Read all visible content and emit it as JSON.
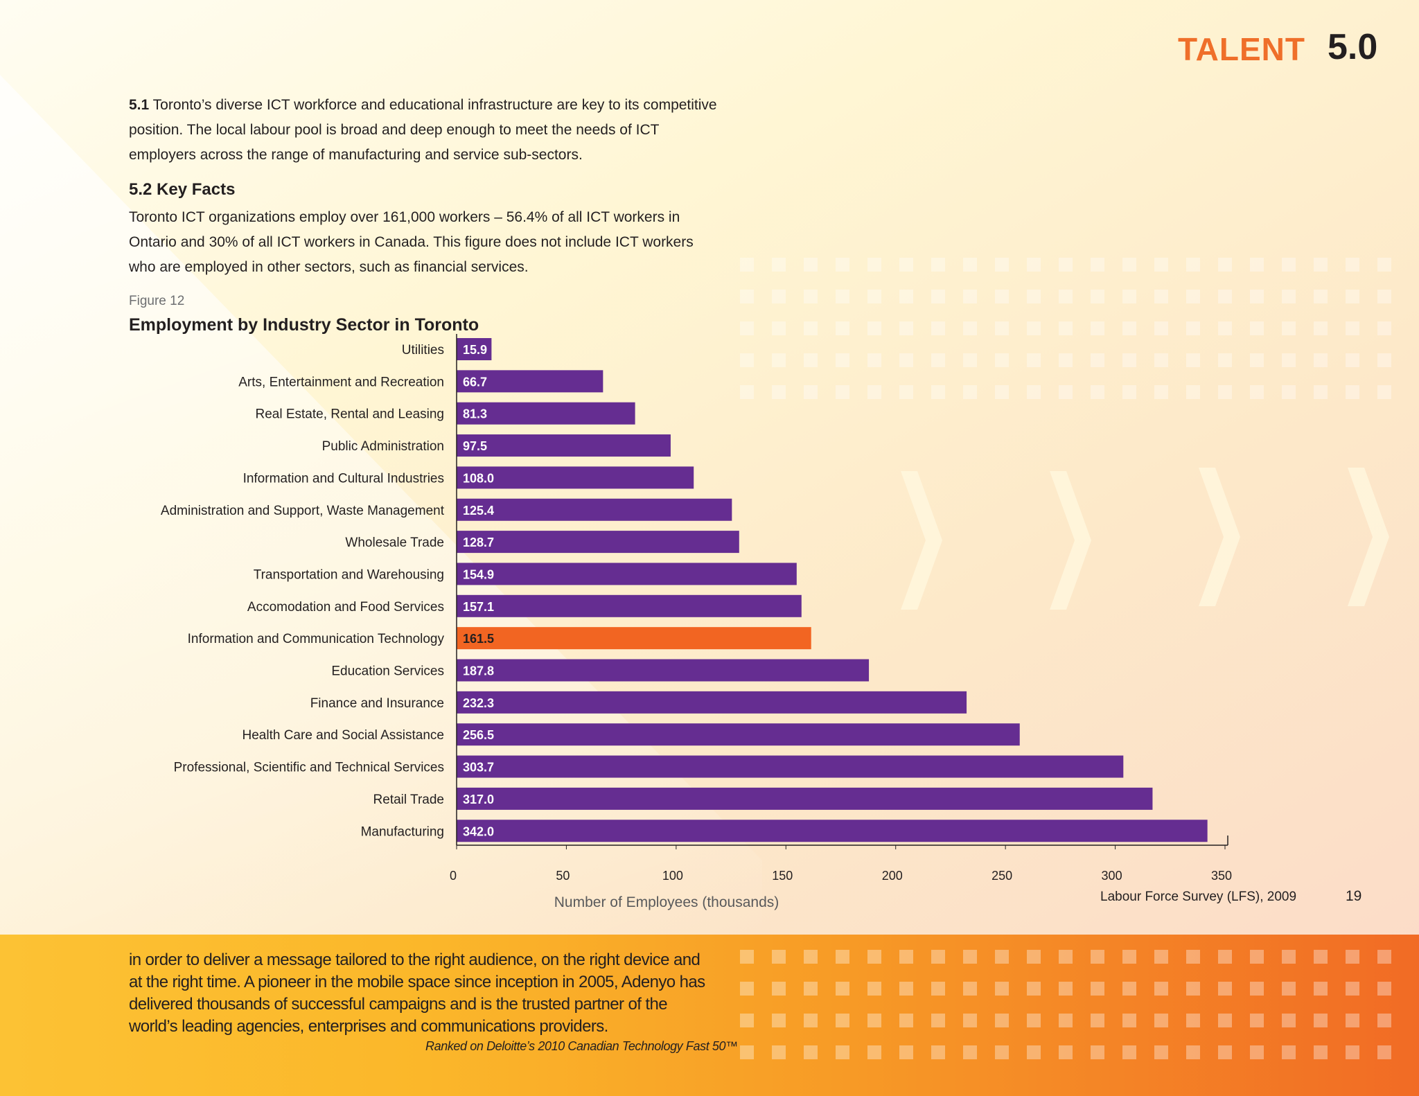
{
  "header": {
    "section_label": "TALENT",
    "section_number": "5.0"
  },
  "intro": {
    "number": "5.1",
    "text": "Toronto’s diverse ICT workforce and educational infrastructure are key to its competitive position. The local labour pool is broad and deep enough to meet the needs of ICT employers across the range of manufacturing and service sub-sectors."
  },
  "key_facts": {
    "heading": "5.2 Key Facts",
    "text": "Toronto ICT organizations employ over 161,000 workers – 56.4% of all ICT workers in Ontario and 30% of all ICT workers in Canada. This figure does not include ICT workers who are employed in other sectors, such as financial services."
  },
  "figure": {
    "label": "Figure 12"
  },
  "chart_data": {
    "type": "bar",
    "orientation": "horizontal",
    "title": "Employment by Industry Sector in Toronto",
    "xlabel": "Number of Employees (thousands)",
    "ylabel": "",
    "xlim": [
      0,
      350
    ],
    "xticks": [
      0,
      50,
      100,
      150,
      200,
      250,
      300,
      350
    ],
    "categories": [
      "Utilities",
      "Arts, Entertainment and Recreation",
      "Real Estate, Rental and Leasing",
      "Public Administration",
      "Information and Cultural Industries",
      "Administration and Support, Waste Management",
      "Wholesale Trade",
      "Transportation and Warehousing",
      "Accomodation and Food Services",
      "Information and Communication Technology",
      "Education Services",
      "Finance and Insurance",
      "Health Care and Social Assistance",
      "Professional, Scientific and Technical Services",
      "Retail Trade",
      "Manufacturing"
    ],
    "values": [
      15.9,
      66.7,
      81.3,
      97.5,
      108.0,
      125.4,
      128.7,
      154.9,
      157.1,
      161.5,
      187.8,
      232.3,
      256.5,
      303.7,
      317.0,
      342.0
    ],
    "value_labels": [
      "15.9",
      "66.7",
      "81.3",
      "97.5",
      "108.0",
      "125.4",
      "128.7",
      "154.9",
      "157.1",
      "161.5",
      "187.8",
      "232.3",
      "256.5",
      "303.7",
      "317.0",
      "342.0"
    ],
    "highlight": "Information and Communication Technology",
    "colors": {
      "bar": "#652d91",
      "highlight": "#f26522",
      "label": "#ffffff",
      "highlight_label": "#231f20"
    },
    "grid": false,
    "legend": "none"
  },
  "source": "Labour Force Survey (LFS), 2009",
  "page_number": "19",
  "footer": {
    "text": "in order to deliver a message tailored to the right audience, on the right device and at the right time. A pioneer in the mobile space since inception in 2005, Adenyo has delivered thousands of successful campaigns and is the trusted partner of the world’s leading agencies, enterprises and communications providers.",
    "note": "Ranked on Deloitte’s 2010 Canadian Technology Fast 50™"
  }
}
